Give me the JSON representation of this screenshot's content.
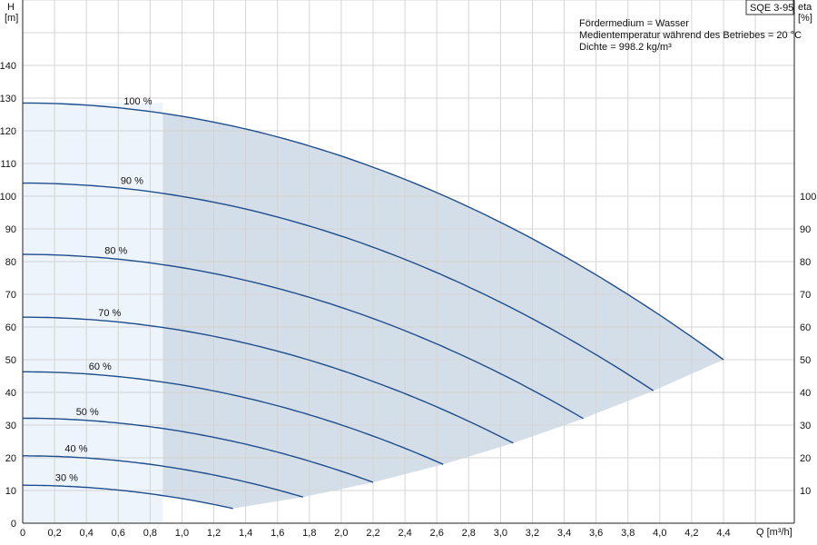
{
  "chart_data": {
    "type": "line",
    "model": "SQE 3-95",
    "info_lines": [
      "Fördermedium = Wasser",
      "Medientemperatur während des Betriebes = 20 °C",
      "Dichte = 998.2 kg/m³"
    ],
    "xlabel": "Q [m³/h]",
    "ylabel_left": [
      "H",
      "[m]"
    ],
    "ylabel_right": [
      "eta",
      "[%]"
    ],
    "xlim": [
      0,
      4.4
    ],
    "ylim": [
      0,
      150
    ],
    "x_ticks": [
      "0",
      "0,2",
      "0,4",
      "0,6",
      "0,8",
      "1,0",
      "1,2",
      "1,4",
      "1,6",
      "1,8",
      "2,0",
      "2,2",
      "2,4",
      "2,6",
      "2,8",
      "3,0",
      "3,2",
      "3,4",
      "3,6",
      "3,8",
      "4,0",
      "4,2",
      "4,4"
    ],
    "y_ticks_left": [
      "0",
      "10",
      "20",
      "30",
      "40",
      "50",
      "60",
      "70",
      "80",
      "90",
      "100",
      "110",
      "120",
      "130",
      "140"
    ],
    "y_ticks_right": [
      "10",
      "20",
      "30",
      "40",
      "50",
      "60",
      "70",
      "80",
      "90",
      "100"
    ],
    "grid": true,
    "colors": {
      "curve": "#1f4e8c",
      "shaded_region": "#d3dee9",
      "low_flow_region": "#edf4fb",
      "grid": "#d4d4d4"
    },
    "low_flow_limit_q": 0.88,
    "series": [
      {
        "name": "100 %",
        "h0": 128.5,
        "qmax": 4.4,
        "hend": 50.0
      },
      {
        "name": "90 %",
        "h0": 104.0,
        "qmax": 3.96,
        "hend": 40.5
      },
      {
        "name": "80 %",
        "h0": 82.2,
        "qmax": 3.52,
        "hend": 32.0
      },
      {
        "name": "70 %",
        "h0": 63.0,
        "qmax": 3.08,
        "hend": 24.5
      },
      {
        "name": "60 %",
        "h0": 46.3,
        "qmax": 2.64,
        "hend": 18.0
      },
      {
        "name": "50 %",
        "h0": 32.1,
        "qmax": 2.2,
        "hend": 12.5
      },
      {
        "name": "40 %",
        "h0": 20.6,
        "qmax": 1.76,
        "hend": 8.0
      },
      {
        "name": "30 %",
        "h0": 11.6,
        "qmax": 1.32,
        "hend": 4.5
      }
    ]
  }
}
